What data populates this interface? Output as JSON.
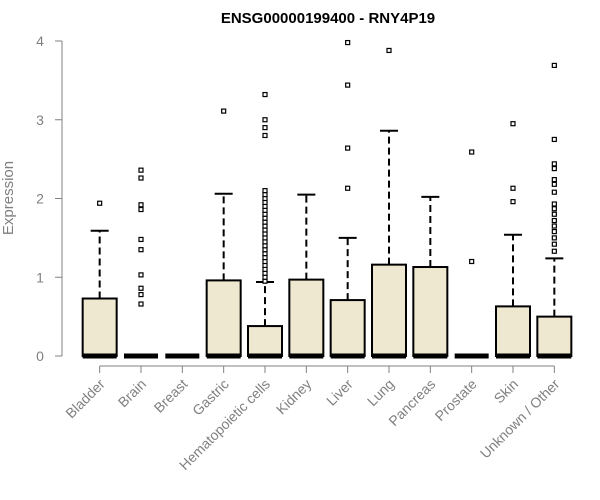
{
  "chart_data": {
    "type": "boxplot",
    "title": "ENSG00000199400 - RNY4P19",
    "xlabel": "",
    "ylabel": "Expression",
    "ylim": [
      0,
      4
    ],
    "yticks": [
      0,
      1,
      2,
      3,
      4
    ],
    "grid": false,
    "colors": {
      "box_fill": "#EEE8D0",
      "box_stroke": "#000000",
      "axis": "#808080"
    },
    "categories": [
      "Bladder",
      "Brain",
      "Breast",
      "Gastric",
      "Hematopoietic cells",
      "Kidney",
      "Liver",
      "Lung",
      "Pancreas",
      "Prostate",
      "Skin",
      "Unknown / Other"
    ],
    "boxes": [
      {
        "label": "Bladder",
        "min": 0,
        "q1": 0,
        "median": 0,
        "q3": 0.73,
        "max": 1.59,
        "outliers": [
          1.94
        ]
      },
      {
        "label": "Brain",
        "min": 0,
        "q1": 0,
        "median": 0,
        "q3": 0,
        "max": 0,
        "outliers": [
          0.66,
          0.78,
          0.86,
          1.03,
          1.35,
          1.48,
          1.86,
          1.92,
          2.26,
          2.36
        ]
      },
      {
        "label": "Breast",
        "min": 0,
        "q1": 0,
        "median": 0,
        "q3": 0,
        "max": 0,
        "outliers": []
      },
      {
        "label": "Gastric",
        "min": 0,
        "q1": 0,
        "median": 0,
        "q3": 0.96,
        "max": 2.06,
        "outliers": [
          3.11
        ]
      },
      {
        "label": "Hematopoietic cells",
        "min": 0,
        "q1": 0,
        "median": 0,
        "q3": 0.38,
        "max": 0.94,
        "outliers": [
          0.95,
          1.0,
          1.05,
          1.1,
          1.15,
          1.2,
          1.25,
          1.3,
          1.35,
          1.4,
          1.45,
          1.5,
          1.55,
          1.6,
          1.65,
          1.7,
          1.75,
          1.8,
          1.85,
          1.9,
          1.95,
          2.0,
          2.05,
          2.1,
          2.8,
          2.9,
          3.0,
          3.32
        ]
      },
      {
        "label": "Kidney",
        "min": 0,
        "q1": 0,
        "median": 0,
        "q3": 0.97,
        "max": 2.05,
        "outliers": []
      },
      {
        "label": "Liver",
        "min": 0,
        "q1": 0,
        "median": 0,
        "q3": 0.71,
        "max": 1.5,
        "outliers": [
          2.13,
          2.64,
          3.44,
          3.98
        ]
      },
      {
        "label": "Lung",
        "min": 0,
        "q1": 0,
        "median": 0,
        "q3": 1.16,
        "max": 2.86,
        "outliers": [
          3.88
        ]
      },
      {
        "label": "Pancreas",
        "min": 0,
        "q1": 0,
        "median": 0,
        "q3": 1.13,
        "max": 2.02,
        "outliers": []
      },
      {
        "label": "Prostate",
        "min": 0,
        "q1": 0,
        "median": 0,
        "q3": 0,
        "max": 0,
        "outliers": [
          1.2,
          2.59
        ]
      },
      {
        "label": "Skin",
        "min": 0,
        "q1": 0,
        "median": 0,
        "q3": 0.63,
        "max": 1.54,
        "outliers": [
          1.96,
          2.13,
          2.95
        ]
      },
      {
        "label": "Unknown / Other",
        "min": 0,
        "q1": 0,
        "median": 0,
        "q3": 0.5,
        "max": 1.24,
        "outliers": [
          1.33,
          1.42,
          1.5,
          1.58,
          1.65,
          1.72,
          1.8,
          1.87,
          1.93,
          2.08,
          2.18,
          2.24,
          2.38,
          2.44,
          2.75,
          3.69
        ]
      }
    ]
  }
}
